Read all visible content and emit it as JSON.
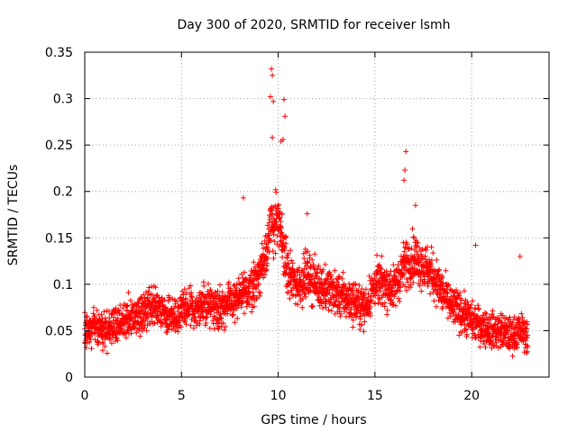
{
  "chart_data": {
    "type": "scatter",
    "title": "Day 300 of 2020, SRMTID for receiver lsmh",
    "xlabel": "GPS time / hours",
    "ylabel": "SRMTID / TECUs",
    "xlim": [
      0,
      24
    ],
    "ylim": [
      0,
      0.35
    ],
    "x_ticks": [
      0,
      5,
      10,
      15,
      20
    ],
    "x_tick_labels": [
      "0",
      "5",
      "10",
      "15",
      "20"
    ],
    "y_ticks": [
      0,
      0.05,
      0.1,
      0.15,
      0.2,
      0.25,
      0.3,
      0.35
    ],
    "y_tick_labels": [
      "0",
      "0.05",
      "0.1",
      "0.15",
      "0.2",
      "0.25",
      "0.3",
      "0.35"
    ],
    "grid": true,
    "marker": "+",
    "color": "#ff0000",
    "series": [
      {
        "name": "SRMTID",
        "trend": {
          "hours": [
            0,
            0.5,
            1,
            1.5,
            2,
            2.5,
            3,
            3.5,
            4,
            4.5,
            5,
            5.5,
            6,
            6.5,
            7,
            7.5,
            8,
            8.5,
            9,
            9.3,
            9.6,
            9.9,
            10.2,
            10.5,
            11,
            11.5,
            12,
            12.5,
            13,
            13.5,
            14,
            14.5,
            15,
            15.5,
            16,
            16.5,
            17,
            17.5,
            18,
            18.5,
            19,
            19.5,
            20,
            20.5,
            21,
            21.5,
            22,
            22.5,
            22.9
          ],
          "values": [
            0.05,
            0.055,
            0.05,
            0.055,
            0.06,
            0.065,
            0.07,
            0.075,
            0.07,
            0.065,
            0.07,
            0.075,
            0.075,
            0.08,
            0.075,
            0.08,
            0.085,
            0.095,
            0.11,
            0.13,
            0.16,
            0.17,
            0.15,
            0.11,
            0.1,
            0.11,
            0.1,
            0.095,
            0.09,
            0.085,
            0.08,
            0.075,
            0.1,
            0.1,
            0.095,
            0.12,
            0.13,
            0.12,
            0.11,
            0.09,
            0.075,
            0.07,
            0.06,
            0.055,
            0.05,
            0.05,
            0.045,
            0.05,
            0.045
          ]
        },
        "spread": 0.022,
        "sample_interval_hours": 0.0083,
        "time_range": [
          0,
          22.9
        ],
        "peaks": [
          {
            "hour": 9.65,
            "value": 0.332
          },
          {
            "hour": 9.7,
            "value": 0.325
          },
          {
            "hour": 9.6,
            "value": 0.302
          },
          {
            "hour": 9.75,
            "value": 0.297
          },
          {
            "hour": 10.3,
            "value": 0.299
          },
          {
            "hour": 10.35,
            "value": 0.281
          },
          {
            "hour": 10.25,
            "value": 0.256
          },
          {
            "hour": 10.15,
            "value": 0.254
          },
          {
            "hour": 9.7,
            "value": 0.258
          },
          {
            "hour": 16.6,
            "value": 0.243
          },
          {
            "hour": 16.55,
            "value": 0.223
          },
          {
            "hour": 16.5,
            "value": 0.212
          },
          {
            "hour": 8.2,
            "value": 0.193
          },
          {
            "hour": 17.1,
            "value": 0.185
          },
          {
            "hour": 11.5,
            "value": 0.176
          },
          {
            "hour": 20.2,
            "value": 0.142
          },
          {
            "hour": 22.5,
            "value": 0.13
          }
        ]
      }
    ]
  }
}
